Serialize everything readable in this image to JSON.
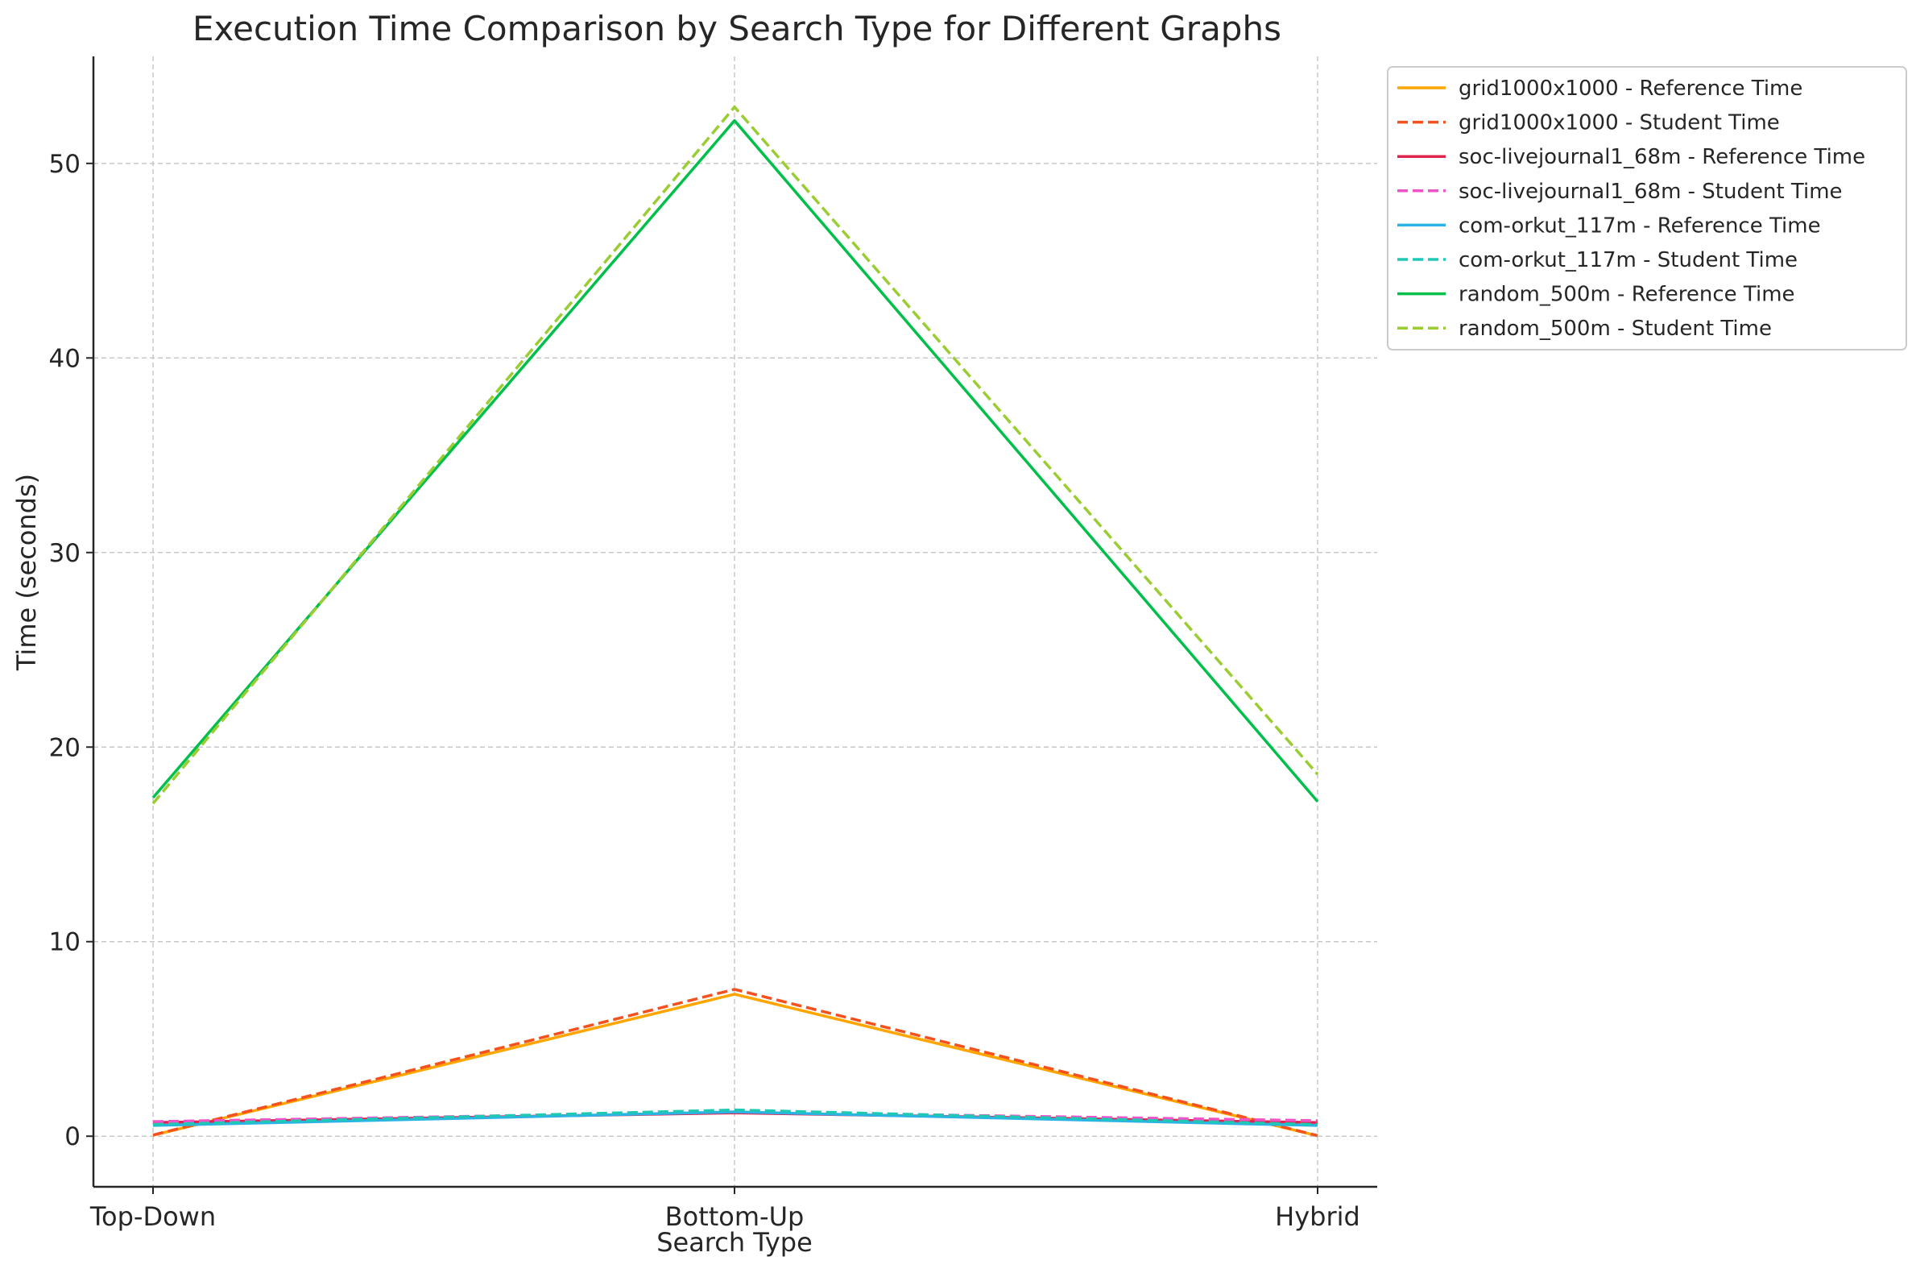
{
  "chart_data": {
    "type": "line",
    "title": "Execution Time Comparison by Search Type for Different Graphs",
    "xlabel": "Search Type",
    "ylabel": "Time (seconds)",
    "categories": [
      "Top-Down",
      "Bottom-Up",
      "Hybrid"
    ],
    "ylim": [
      -2.6,
      55.5
    ],
    "yticks": [
      0,
      10,
      20,
      30,
      40,
      50
    ],
    "grid": true,
    "legend_position": "outside-top-right",
    "series": [
      {
        "name": "grid1000x1000 - Reference Time",
        "values": [
          0.05,
          7.3,
          0.02
        ],
        "color": "#FFA500",
        "dash": "solid"
      },
      {
        "name": "grid1000x1000 - Student Time",
        "values": [
          0.06,
          7.55,
          0.03
        ],
        "color": "#F4511E",
        "dash": "dashed"
      },
      {
        "name": "soc-livejournal1_68m - Reference Time",
        "values": [
          0.7,
          1.2,
          0.7
        ],
        "color": "#E0264E",
        "dash": "solid"
      },
      {
        "name": "soc-livejournal1_68m - Student Time",
        "values": [
          0.75,
          1.25,
          0.8
        ],
        "color": "#F052C7",
        "dash": "dashed"
      },
      {
        "name": "com-orkut_117m - Reference Time",
        "values": [
          0.55,
          1.25,
          0.55
        ],
        "color": "#2BB3E6",
        "dash": "solid"
      },
      {
        "name": "com-orkut_117m - Student Time",
        "values": [
          0.6,
          1.35,
          0.6
        ],
        "color": "#1FC8B4",
        "dash": "dashed"
      },
      {
        "name": "random_500m - Reference Time",
        "values": [
          17.4,
          52.2,
          17.2
        ],
        "color": "#00C04B",
        "dash": "solid"
      },
      {
        "name": "random_500m - Student Time",
        "values": [
          17.1,
          52.9,
          18.6
        ],
        "color": "#9ACD32",
        "dash": "dashed"
      }
    ]
  }
}
